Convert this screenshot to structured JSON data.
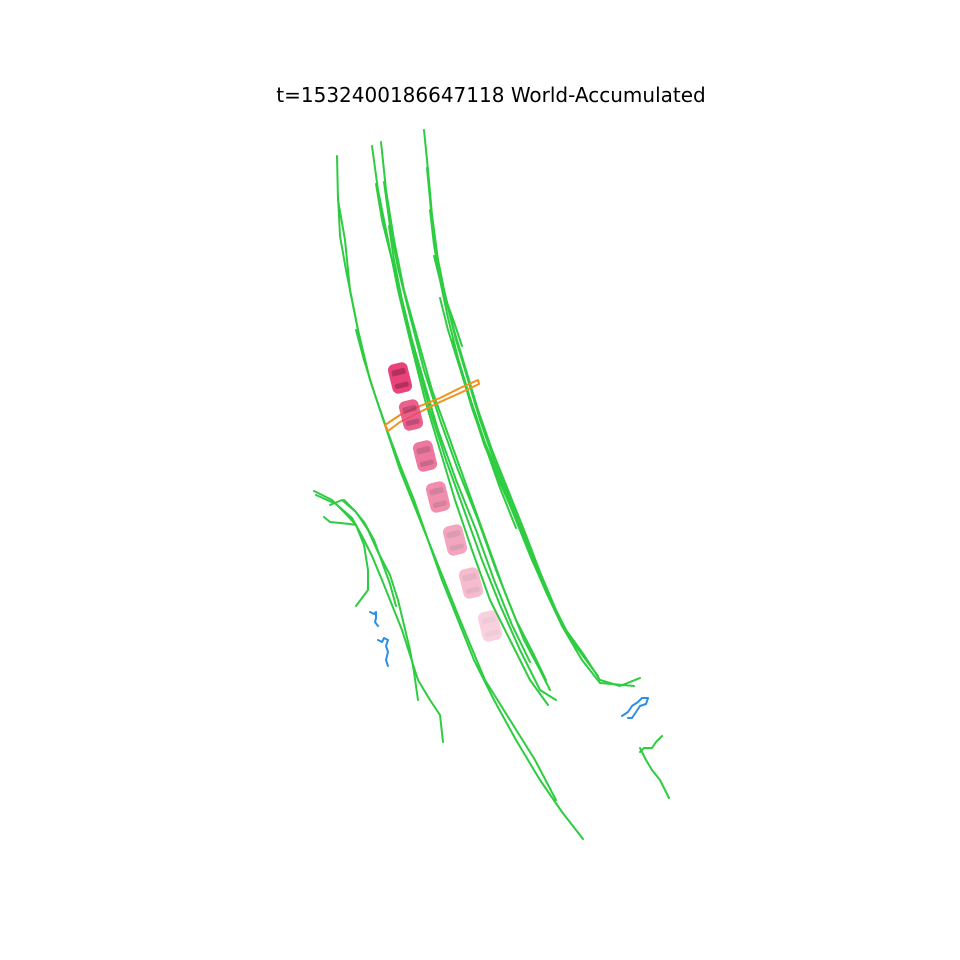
{
  "title": "t=1532400186647118  World-Accumulated",
  "colors": {
    "background": "#ffffff",
    "lane_divider": "#2ecc40",
    "road_crossing": "#f5901e",
    "pedestrian_track": "#2d8fe6",
    "ego_vehicle": "#e8447a"
  },
  "ego_vehicle": {
    "icon": "car-icon",
    "frames_shown": 7,
    "opacity_trail": [
      1.0,
      0.85,
      0.72,
      0.6,
      0.48,
      0.36,
      0.24
    ]
  },
  "layers": {
    "lane_dividers": "lane",
    "road_crossing": "crossing",
    "pedestrian_tracks": "pedestrian"
  }
}
